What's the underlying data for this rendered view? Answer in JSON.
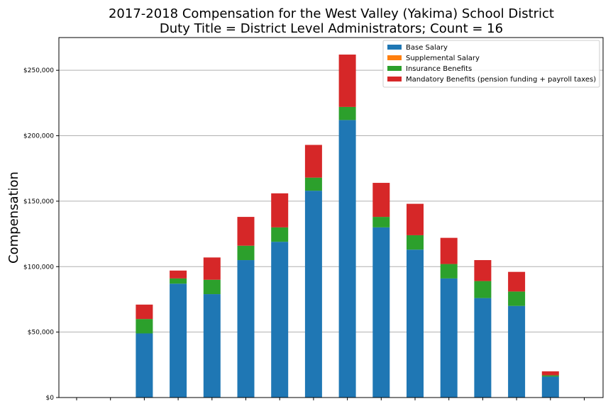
{
  "chart_data": {
    "type": "bar",
    "stacked": true,
    "title": "2017-2018 Compensation for the West Valley (Yakima) School District",
    "subtitle": "Duty Title = District Level Administrators; Count = 16",
    "xlabel": "",
    "ylabel": "Compensation",
    "ylim": [
      0,
      275000
    ],
    "yticks": [
      "$0",
      "$50,000",
      "$100,000",
      "$150,000",
      "$200,000",
      "$250,000"
    ],
    "ytick_values": [
      0,
      50000,
      100000,
      150000,
      200000,
      250000
    ],
    "grid": "horizontal",
    "legend_position": "top-right",
    "categories": [
      "",
      "",
      "",
      "",
      "",
      "",
      "",
      "",
      "",
      "",
      "",
      "",
      "",
      "",
      "",
      ""
    ],
    "series": [
      {
        "name": "Base Salary",
        "color": "#1f77b4",
        "values": [
          0,
          0,
          49000,
          87000,
          79000,
          105000,
          119000,
          158000,
          212000,
          130000,
          113000,
          91000,
          76000,
          70000,
          16000,
          0
        ]
      },
      {
        "name": "Supplemental Salary",
        "color": "#ff7f0e",
        "values": [
          0,
          0,
          0,
          0,
          0,
          0,
          0,
          0,
          0,
          0,
          0,
          0,
          0,
          0,
          0,
          0
        ]
      },
      {
        "name": "Insurance Benefits",
        "color": "#2ca02c",
        "values": [
          0,
          0,
          11000,
          4000,
          11000,
          11000,
          11000,
          10000,
          10000,
          8000,
          11000,
          11000,
          13000,
          11000,
          1000,
          0
        ]
      },
      {
        "name": "Mandatory Benefits (pension funding + payroll taxes)",
        "color": "#d62728",
        "values": [
          0,
          0,
          11000,
          6000,
          17000,
          22000,
          26000,
          25000,
          40000,
          26000,
          24000,
          20000,
          16000,
          15000,
          3000,
          0
        ]
      }
    ]
  }
}
